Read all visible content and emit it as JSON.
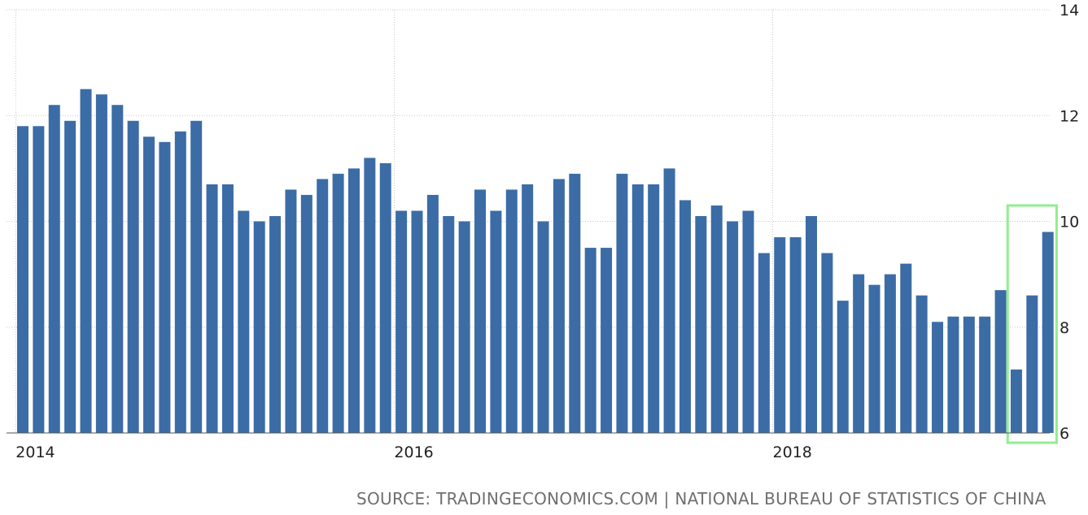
{
  "chart_data": {
    "type": "bar",
    "x_start": "2014-01",
    "frequency": "monthly",
    "values": [
      11.8,
      11.8,
      12.2,
      11.9,
      12.5,
      12.4,
      12.2,
      11.9,
      11.6,
      11.5,
      11.7,
      11.9,
      10.7,
      10.7,
      10.2,
      10.0,
      10.1,
      10.6,
      10.5,
      10.8,
      10.9,
      11.0,
      11.2,
      11.1,
      10.2,
      10.2,
      10.5,
      10.1,
      10.0,
      10.6,
      10.2,
      10.6,
      10.7,
      10.0,
      10.8,
      10.9,
      9.5,
      9.5,
      10.9,
      10.7,
      10.7,
      11.0,
      10.4,
      10.1,
      10.3,
      10.0,
      10.2,
      9.4,
      9.7,
      9.7,
      10.1,
      9.4,
      8.5,
      9.0,
      8.8,
      9.0,
      9.2,
      8.6,
      8.1,
      8.2,
      8.2,
      8.2,
      8.7,
      7.2,
      8.6,
      9.8
    ],
    "x_tick_labels": [
      "2014",
      "2016",
      "2018"
    ],
    "y_tick_labels": [
      "6",
      "8",
      "10",
      "12",
      "14"
    ],
    "ylim": [
      6,
      14
    ],
    "grid": true,
    "bar_color": "#3c6ca6",
    "grid_color": "#c8c8c8",
    "highlight_color": "#90ee90",
    "highlight_range": [
      63,
      65
    ],
    "title": "",
    "xlabel": "",
    "ylabel": ""
  },
  "source_text": "SOURCE: TRADINGECONOMICS.COM | NATIONAL BUREAU OF STATISTICS OF CHINA"
}
